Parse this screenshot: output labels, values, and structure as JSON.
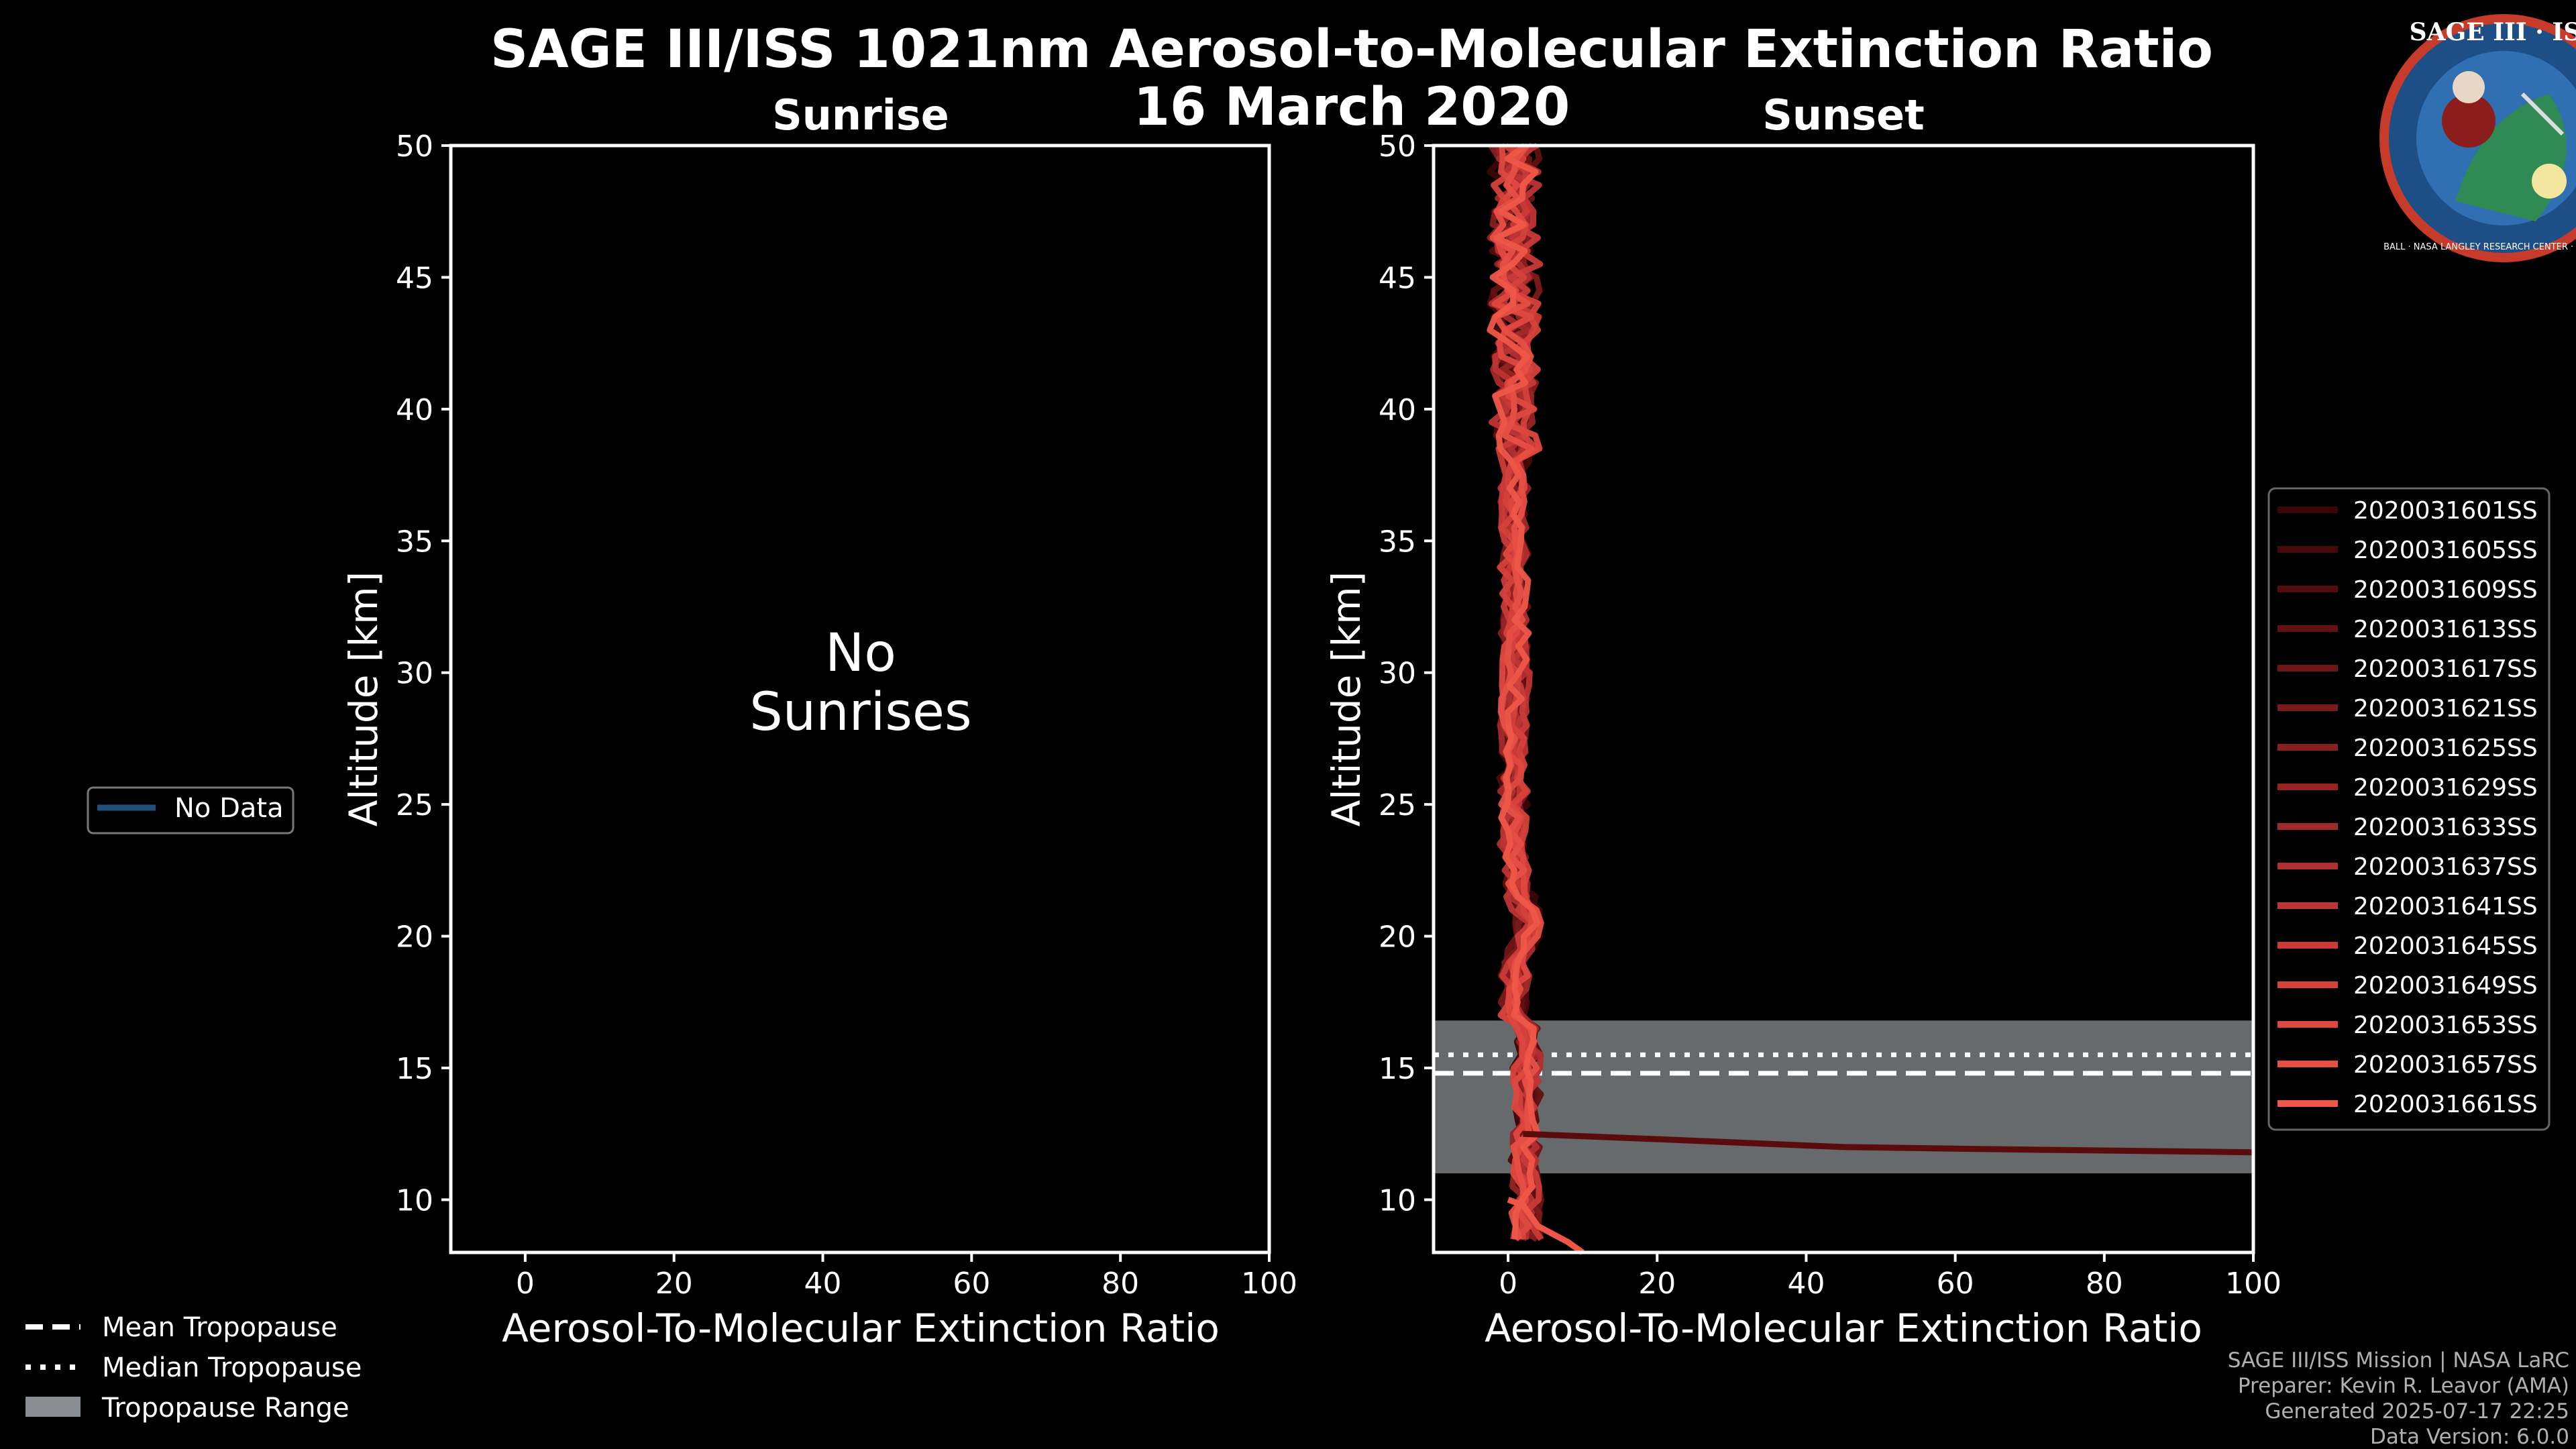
{
  "header": {
    "title_line1": "SAGE III/ISS 1021nm Aerosol-to-Molecular Extinction Ratio",
    "title_line2": "16 March 2020"
  },
  "logo": {
    "title": "SAGE III · ISS",
    "ring_text": "BALL · NASA LANGLEY RESEARCH CENTER · TAS-I · ESA"
  },
  "chart_data": [
    {
      "type": "line",
      "panel": "sunrise",
      "title": "Sunrise",
      "xlabel": "Aerosol-To-Molecular Extinction Ratio",
      "ylabel": "Altitude [km]",
      "xlim": [
        -10,
        100
      ],
      "ylim": [
        8,
        50
      ],
      "xticks": [
        "0",
        "20",
        "40",
        "60",
        "80",
        "100"
      ],
      "yticks": [
        "10",
        "15",
        "20",
        "25",
        "30",
        "35",
        "40",
        "45",
        "50"
      ],
      "message_line1": "No",
      "message_line2": "Sunrises",
      "series": []
    },
    {
      "type": "line",
      "panel": "sunset",
      "title": "Sunset",
      "xlabel": "Aerosol-To-Molecular Extinction Ratio",
      "ylabel": "Altitude [km]",
      "xlim": [
        -10,
        100
      ],
      "ylim": [
        8,
        50
      ],
      "xticks": [
        "0",
        "20",
        "40",
        "60",
        "80",
        "100"
      ],
      "yticks": [
        "10",
        "15",
        "20",
        "25",
        "30",
        "35",
        "40",
        "45",
        "50"
      ],
      "tropopause": {
        "mean": 14.8,
        "median": 15.5,
        "min": 11.0,
        "max": 16.8
      },
      "series": [
        {
          "name": "2020031601SS",
          "color": "#3a0606"
        },
        {
          "name": "2020031605SS",
          "color": "#460909"
        },
        {
          "name": "2020031609SS",
          "color": "#530c0c"
        },
        {
          "name": "2020031613SS",
          "color": "#611111"
        },
        {
          "name": "2020031617SS",
          "color": "#6e1515"
        },
        {
          "name": "2020031621SS",
          "color": "#7b1a1a"
        },
        {
          "name": "2020031625SS",
          "color": "#891f1f"
        },
        {
          "name": "2020031629SS",
          "color": "#962424"
        },
        {
          "name": "2020031633SS",
          "color": "#a32a2a"
        },
        {
          "name": "2020031637SS",
          "color": "#b02f2f"
        },
        {
          "name": "2020031641SS",
          "color": "#bd3434"
        },
        {
          "name": "2020031645SS",
          "color": "#c93a38"
        },
        {
          "name": "2020031649SS",
          "color": "#d4413b"
        },
        {
          "name": "2020031653SS",
          "color": "#de483f"
        },
        {
          "name": "2020031657SS",
          "color": "#e64f44"
        },
        {
          "name": "2020031661SS",
          "color": "#ee5748"
        }
      ],
      "special_series": [
        {
          "name": "2020031601SS",
          "color": "#5a0b0b",
          "x": [
            2,
            20,
            45,
            70,
            100
          ],
          "y": [
            12.5,
            12.3,
            12.0,
            11.9,
            11.8
          ]
        },
        {
          "name": "2020031661SS",
          "color": "#ee5748",
          "x": [
            0,
            2,
            4,
            6,
            8,
            10
          ],
          "y": [
            10.0,
            9.8,
            9.0,
            8.7,
            8.4,
            8.0
          ]
        }
      ]
    }
  ],
  "left_legend": {
    "no_data": "No Data",
    "no_data_color": "#1f4e79"
  },
  "bottom_legend": {
    "mean": "Mean Tropopause",
    "median": "Median Tropopause",
    "range": "Tropopause Range",
    "range_color": "#8a8d91"
  },
  "footer": {
    "line1": "SAGE III/ISS Mission | NASA LaRC",
    "line2": "Preparer: Kevin R. Leavor (AMA)",
    "line3": "Generated 2025-07-17 22:25",
    "line4": "Data Version: 6.0.0"
  }
}
